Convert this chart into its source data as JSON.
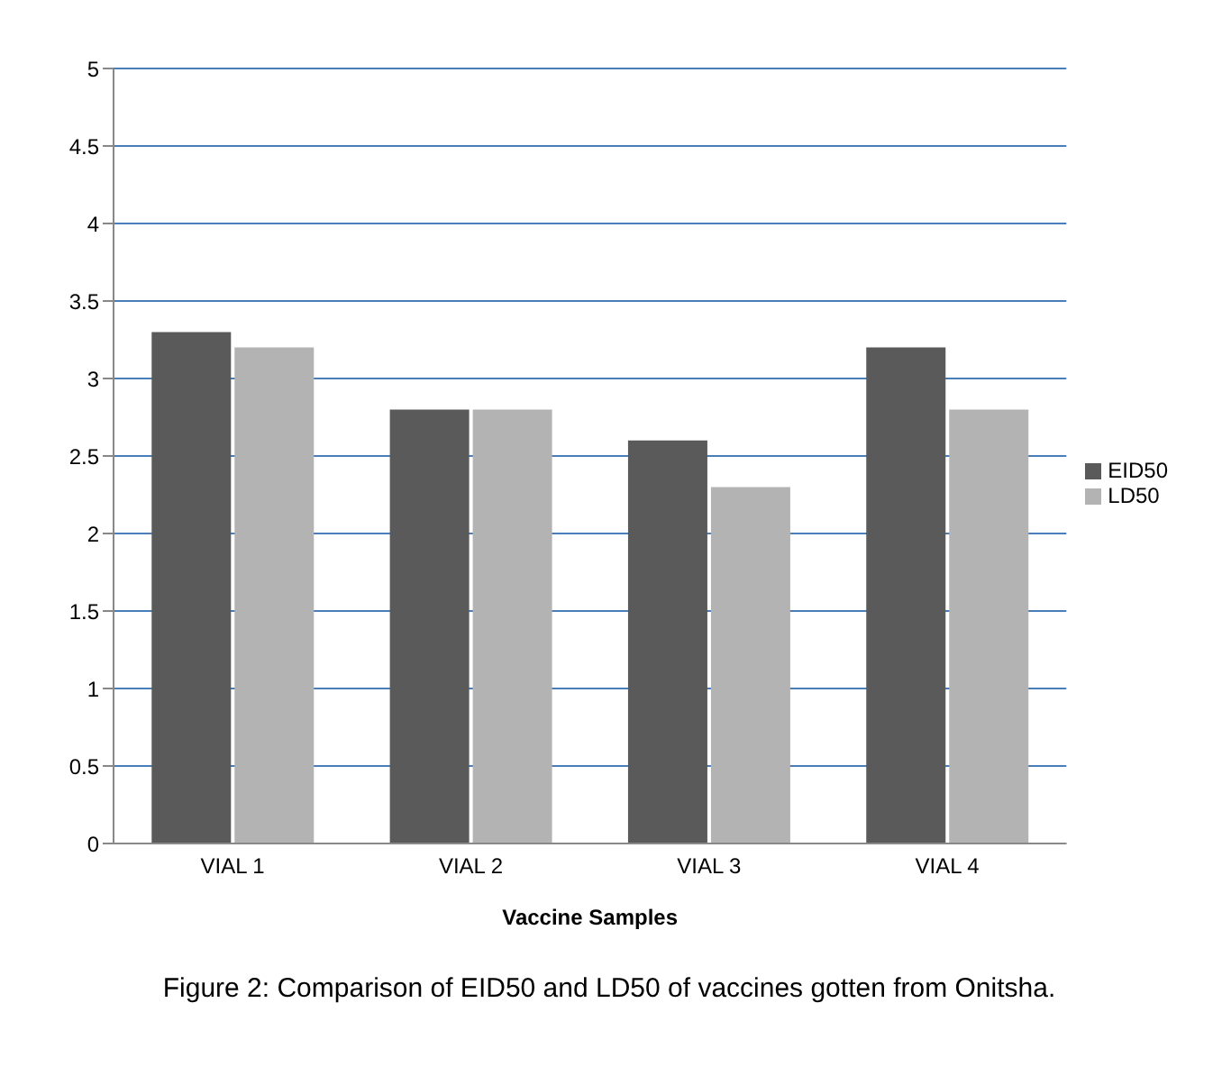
{
  "chart_data": {
    "type": "bar",
    "xlabel": "Vaccine Samples",
    "categories": [
      "VIAL 1",
      "VIAL 2",
      "VIAL 3",
      "VIAL 4"
    ],
    "series": [
      {
        "name": "EID50",
        "color": "#5a5a5a",
        "values": [
          3.3,
          2.8,
          2.6,
          3.2
        ]
      },
      {
        "name": "LD50",
        "color": "#b3b3b3",
        "values": [
          3.2,
          2.8,
          2.3,
          2.8
        ]
      }
    ],
    "ylim": [
      0,
      5
    ],
    "yticks": [
      0,
      0.5,
      1,
      1.5,
      2,
      2.5,
      3,
      3.5,
      4,
      4.5,
      5
    ],
    "grid": "y",
    "legend": "right",
    "annotations": [
      "Figure 2: Comparison of EID50 and LD50 of vaccines gotten from Onitsha."
    ]
  }
}
